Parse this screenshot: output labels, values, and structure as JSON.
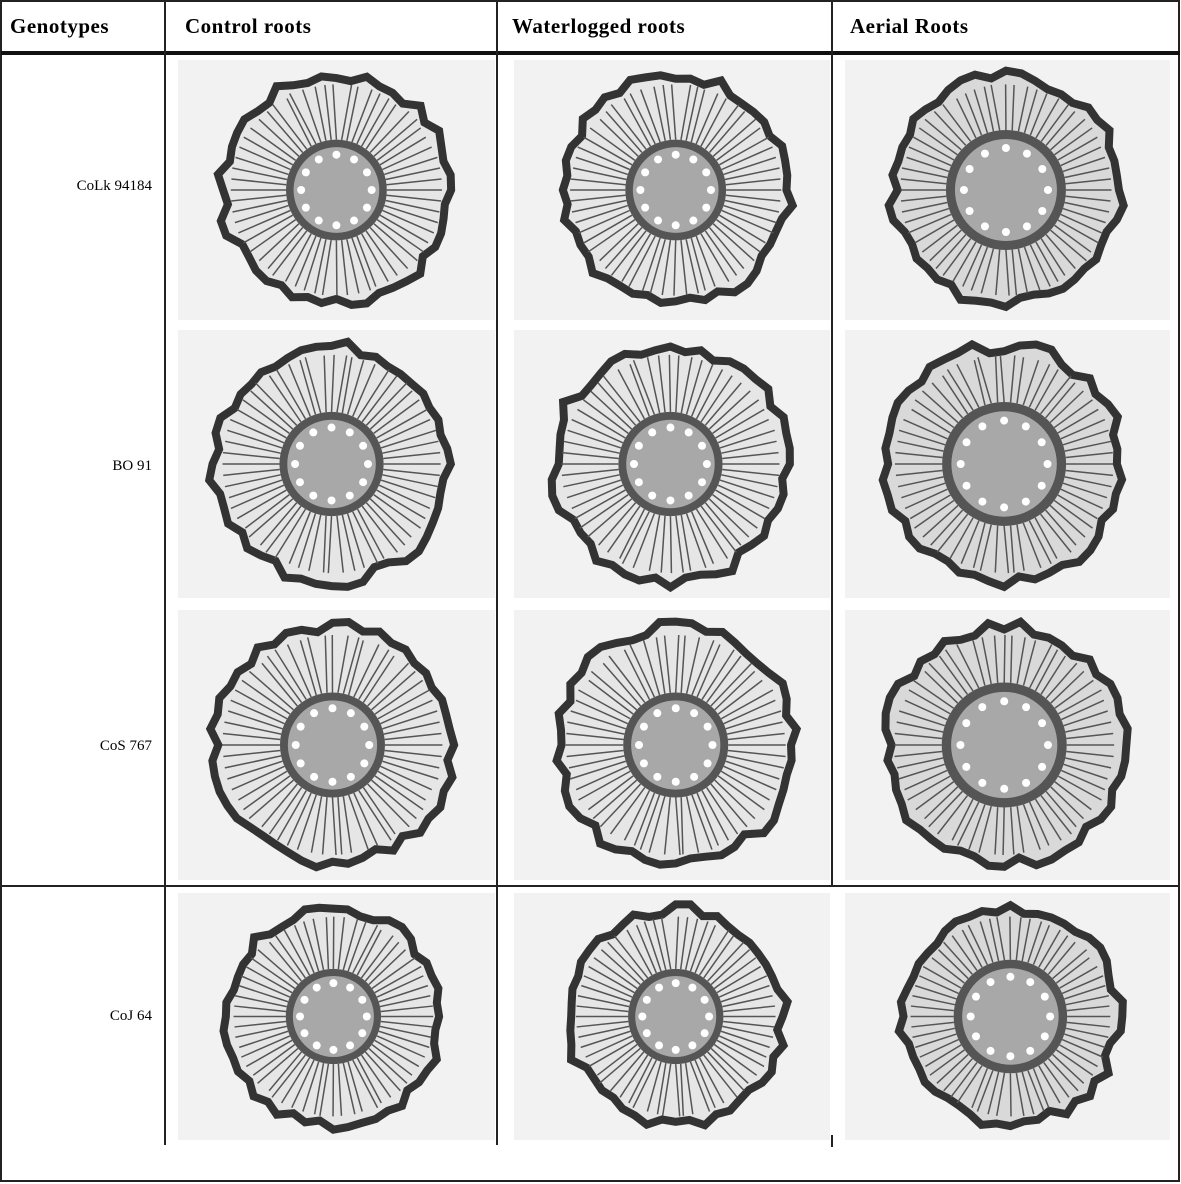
{
  "table": {
    "headers": [
      "Genotypes",
      "Control roots",
      "Waterlogged roots",
      "Aerial Roots"
    ],
    "rows": [
      {
        "genotype": "CoLk 94184"
      },
      {
        "genotype": "BO 91"
      },
      {
        "genotype": "CoS 767"
      },
      {
        "genotype": "CoJ 64"
      }
    ]
  }
}
